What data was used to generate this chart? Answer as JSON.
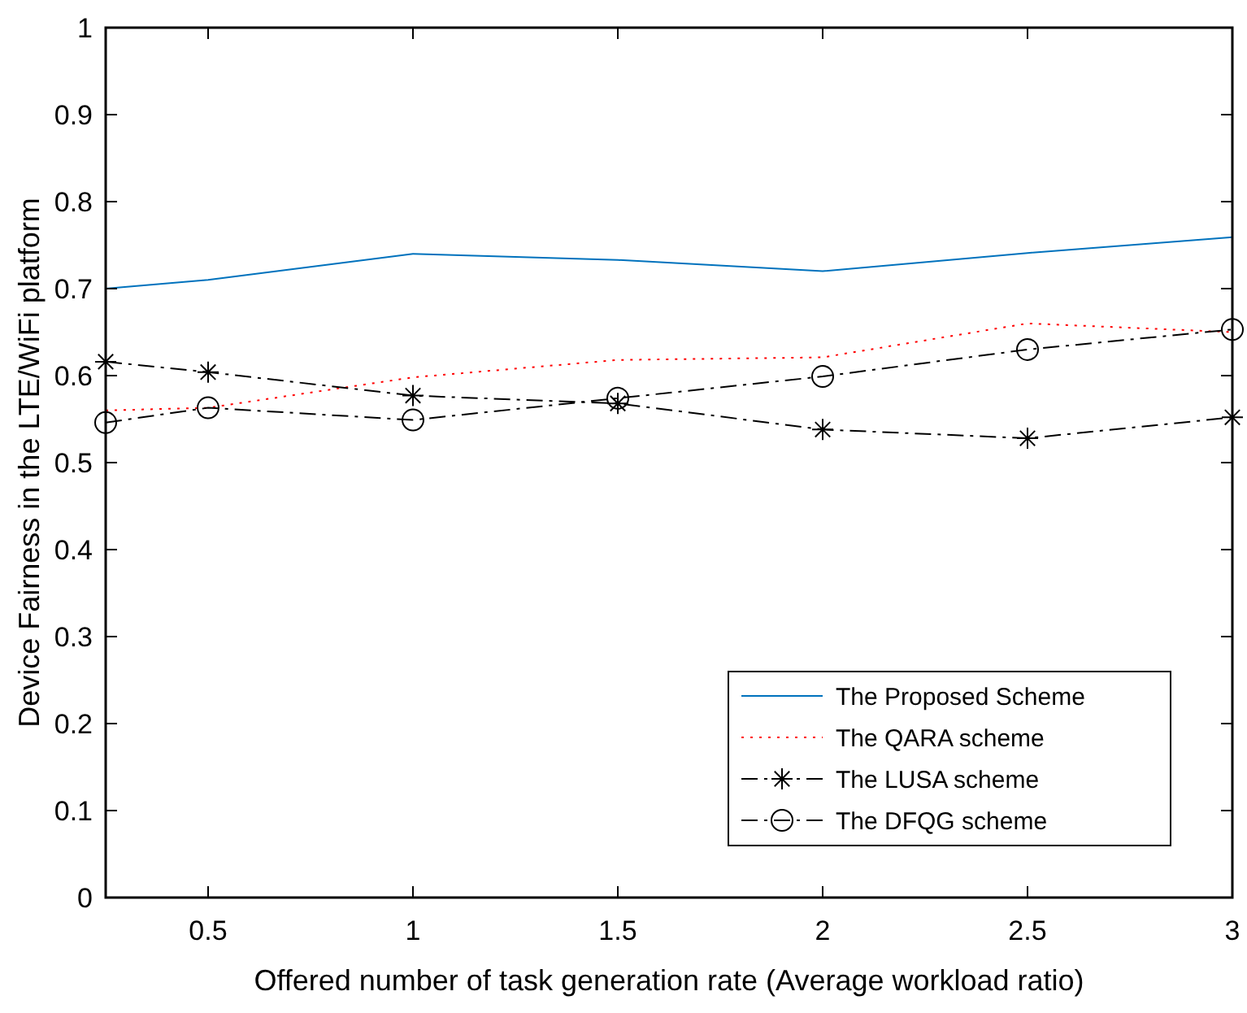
{
  "chart_data": {
    "type": "line",
    "xlabel": "Offered number of task generation rate (Average workload ratio)",
    "ylabel": "Device Fairness in the LTE/WiFi platform",
    "x": [
      0.25,
      0.5,
      1,
      1.5,
      2,
      2.5,
      3
    ],
    "series": [
      {
        "name": "The Proposed Scheme",
        "color": "#0072bd",
        "values": [
          0.7,
          0.71,
          0.74,
          0.733,
          0.72,
          0.741,
          0.759
        ],
        "line_style": "solid",
        "marker": "none"
      },
      {
        "name": "The QARA scheme",
        "color": "#ff0000",
        "values": [
          0.56,
          0.563,
          0.598,
          0.618,
          0.621,
          0.66,
          0.65
        ],
        "line_style": "dotted",
        "marker": "none"
      },
      {
        "name": "The LUSA scheme",
        "color": "#000000",
        "values": [
          0.616,
          0.604,
          0.577,
          0.568,
          0.538,
          0.528,
          0.552
        ],
        "line_style": "dashdot",
        "marker": "cross"
      },
      {
        "name": "The DFQG scheme",
        "color": "#000000",
        "values": [
          0.546,
          0.563,
          0.549,
          0.574,
          0.599,
          0.63,
          0.653
        ],
        "line_style": "dashdot",
        "marker": "circle"
      }
    ],
    "xlim": [
      0.25,
      3
    ],
    "xticks": [
      0.5,
      1,
      1.5,
      2,
      2.5,
      3
    ],
    "ylim": [
      0,
      1
    ],
    "yticks": [
      0,
      0.1,
      0.2,
      0.3,
      0.4,
      0.5,
      0.6,
      0.7,
      0.8,
      0.9,
      1
    ],
    "grid": false,
    "legend": "bottom right"
  }
}
